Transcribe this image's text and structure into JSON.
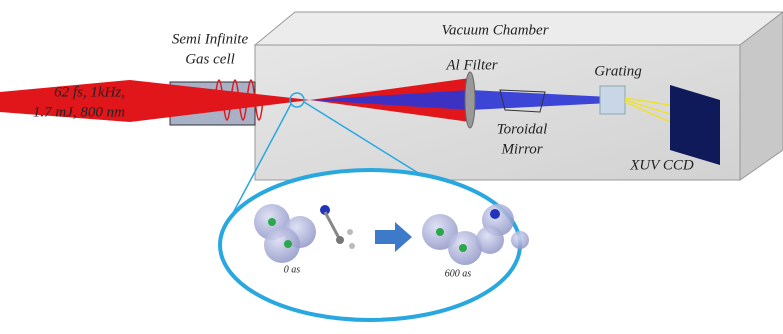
{
  "labels": {
    "gas_cell": [
      "Semi Infinite",
      "Gas cell"
    ],
    "laser": [
      "62 fs, 1kHz,",
      "1.7 mJ, 800 nm"
    ],
    "chamber": "Vacuum Chamber",
    "filter": "Al Filter",
    "mirror": [
      "Toroidal",
      "Mirror"
    ],
    "grating": "Grating",
    "ccd": "XUV CCD",
    "time_start": "0 as",
    "time_end": "600 as"
  }
}
